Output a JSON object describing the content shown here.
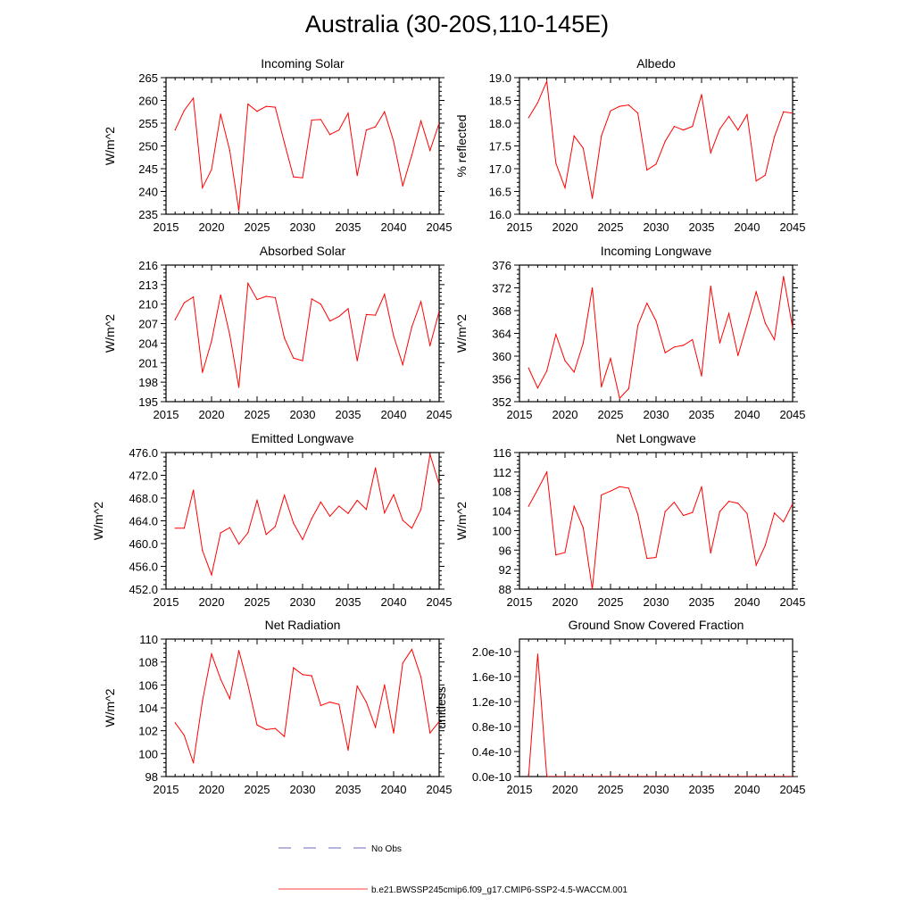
{
  "page": {
    "title": "Australia (30-20S,110-145E)"
  },
  "legend": {
    "obs_label": "No Obs",
    "model_label": "b.e21.BWSSP245cmip6.f09_g17.CMIP6-SSP2-4.5-WACCM.001",
    "obs_color": "#3a3aa8",
    "model_color": "#ff0000"
  },
  "chart_data": [
    {
      "type": "line",
      "title": "Incoming Solar",
      "xlabel": "",
      "ylabel": "W/m^2",
      "xlim": [
        2015,
        2045
      ],
      "ylim": [
        235,
        265
      ],
      "xticks": [
        "2015",
        "2020",
        "2025",
        "2030",
        "2035",
        "2040",
        "2045"
      ],
      "yticks": [
        "235",
        "240",
        "245",
        "250",
        "255",
        "260",
        "265"
      ],
      "x": [
        2016,
        2017,
        2018,
        2019,
        2020,
        2021,
        2022,
        2023,
        2024,
        2025,
        2026,
        2027,
        2028,
        2029,
        2030,
        2031,
        2032,
        2033,
        2034,
        2035,
        2036,
        2037,
        2038,
        2039,
        2040,
        2041,
        2042,
        2043,
        2044,
        2045
      ],
      "series": [
        {
          "values": [
            253.5,
            257.8,
            260.5,
            240.8,
            244.8,
            257.0,
            249.0,
            235.8,
            259.2,
            257.6,
            258.7,
            258.5,
            250.7,
            243.2,
            243.0,
            255.7,
            255.8,
            252.5,
            253.5,
            257.2,
            243.5,
            253.5,
            254.2,
            257.5,
            251.0,
            241.2,
            248.0,
            255.5,
            249.0,
            255.0
          ],
          "color": "#ff0000"
        }
      ]
    },
    {
      "type": "line",
      "title": "Albedo",
      "xlabel": "",
      "ylabel": "% reflected",
      "xlim": [
        2015,
        2045
      ],
      "ylim": [
        16.0,
        19.0
      ],
      "xticks": [
        "2015",
        "2020",
        "2025",
        "2030",
        "2035",
        "2040",
        "2045"
      ],
      "yticks": [
        "16.0",
        "16.5",
        "17.0",
        "17.5",
        "18.0",
        "18.5",
        "19.0"
      ],
      "x": [
        2016,
        2017,
        2018,
        2019,
        2020,
        2021,
        2022,
        2023,
        2024,
        2025,
        2026,
        2027,
        2028,
        2029,
        2030,
        2031,
        2032,
        2033,
        2034,
        2035,
        2036,
        2037,
        2038,
        2039,
        2040,
        2041,
        2042,
        2043,
        2044,
        2045
      ],
      "series": [
        {
          "values": [
            18.12,
            18.45,
            18.92,
            17.12,
            16.58,
            17.72,
            17.45,
            16.35,
            17.72,
            18.27,
            18.37,
            18.4,
            18.22,
            16.97,
            17.1,
            17.6,
            17.93,
            17.85,
            17.93,
            18.63,
            17.35,
            17.87,
            18.15,
            17.85,
            18.19,
            16.73,
            16.86,
            17.7,
            18.25,
            18.22
          ],
          "color": "#ff0000"
        }
      ]
    },
    {
      "type": "line",
      "title": "Absorbed Solar",
      "xlabel": "",
      "ylabel": "W/m^2",
      "xlim": [
        2015,
        2045
      ],
      "ylim": [
        195,
        216
      ],
      "xticks": [
        "2015",
        "2020",
        "2025",
        "2030",
        "2035",
        "2040",
        "2045"
      ],
      "yticks": [
        "195",
        "198",
        "201",
        "204",
        "207",
        "210",
        "213",
        "216"
      ],
      "x": [
        2016,
        2017,
        2018,
        2019,
        2020,
        2021,
        2022,
        2023,
        2024,
        2025,
        2026,
        2027,
        2028,
        2029,
        2030,
        2031,
        2032,
        2033,
        2034,
        2035,
        2036,
        2037,
        2038,
        2039,
        2040,
        2041,
        2042,
        2043,
        2044,
        2045
      ],
      "series": [
        {
          "values": [
            207.6,
            210.2,
            211.1,
            199.5,
            204.3,
            211.4,
            205.3,
            197.2,
            213.2,
            210.7,
            211.2,
            211.0,
            204.8,
            201.7,
            201.3,
            210.8,
            210.0,
            207.4,
            208.1,
            209.3,
            201.3,
            208.4,
            208.3,
            211.5,
            205.1,
            200.7,
            206.5,
            210.4,
            203.6,
            208.9
          ],
          "color": "#ff0000"
        }
      ]
    },
    {
      "type": "line",
      "title": "Incoming Longwave",
      "xlabel": "",
      "ylabel": "W/m^2",
      "xlim": [
        2015,
        2045
      ],
      "ylim": [
        352,
        376
      ],
      "xticks": [
        "2015",
        "2020",
        "2025",
        "2030",
        "2035",
        "2040",
        "2045"
      ],
      "yticks": [
        "352",
        "356",
        "360",
        "364",
        "368",
        "372",
        "376"
      ],
      "x": [
        2016,
        2017,
        2018,
        2019,
        2020,
        2021,
        2022,
        2023,
        2024,
        2025,
        2026,
        2027,
        2028,
        2029,
        2030,
        2031,
        2032,
        2033,
        2034,
        2035,
        2036,
        2037,
        2038,
        2039,
        2040,
        2041,
        2042,
        2043,
        2044,
        2045
      ],
      "series": [
        {
          "values": [
            357.9,
            354.4,
            357.4,
            363.8,
            359.2,
            357.2,
            362.3,
            372.0,
            354.6,
            359.6,
            352.6,
            354.3,
            365.4,
            369.3,
            366.2,
            360.6,
            361.6,
            361.9,
            362.9,
            356.5,
            372.3,
            362.3,
            367.5,
            360.1,
            365.6,
            371.3,
            365.8,
            362.9,
            374.0,
            365.0
          ],
          "color": "#ff0000"
        }
      ]
    },
    {
      "type": "line",
      "title": "Emitted Longwave",
      "xlabel": "",
      "ylabel": "W/m^2",
      "xlim": [
        2015,
        2045
      ],
      "ylim": [
        452.0,
        476.0
      ],
      "xticks": [
        "2015",
        "2020",
        "2025",
        "2030",
        "2035",
        "2040",
        "2045"
      ],
      "yticks": [
        "452.0",
        "456.0",
        "460.0",
        "464.0",
        "468.0",
        "472.0",
        "476.0"
      ],
      "x": [
        2016,
        2017,
        2018,
        2019,
        2020,
        2021,
        2022,
        2023,
        2024,
        2025,
        2026,
        2027,
        2028,
        2029,
        2030,
        2031,
        2032,
        2033,
        2034,
        2035,
        2036,
        2037,
        2038,
        2039,
        2040,
        2041,
        2042,
        2043,
        2044,
        2045
      ],
      "series": [
        {
          "values": [
            462.7,
            462.7,
            469.4,
            458.8,
            454.5,
            461.9,
            462.8,
            459.9,
            461.9,
            467.6,
            461.6,
            463.0,
            468.5,
            463.6,
            460.7,
            464.4,
            467.3,
            464.8,
            466.6,
            465.3,
            467.6,
            466.0,
            473.3,
            465.4,
            468.6,
            464.1,
            462.7,
            466.0,
            475.7,
            470.4
          ],
          "color": "#ff0000"
        }
      ]
    },
    {
      "type": "line",
      "title": "Net Longwave",
      "xlabel": "",
      "ylabel": "W/m^2",
      "xlim": [
        2015,
        2045
      ],
      "ylim": [
        88,
        116
      ],
      "xticks": [
        "2015",
        "2020",
        "2025",
        "2030",
        "2035",
        "2040",
        "2045"
      ],
      "yticks": [
        "88",
        "92",
        "96",
        "100",
        "104",
        "108",
        "112",
        "116"
      ],
      "x": [
        2016,
        2017,
        2018,
        2019,
        2020,
        2021,
        2022,
        2023,
        2024,
        2025,
        2026,
        2027,
        2028,
        2029,
        2030,
        2031,
        2032,
        2033,
        2034,
        2035,
        2036,
        2037,
        2038,
        2039,
        2040,
        2041,
        2042,
        2043,
        2044,
        2045
      ],
      "series": [
        {
          "values": [
            105.0,
            108.4,
            112.0,
            95.0,
            95.5,
            105.0,
            100.6,
            88.0,
            107.3,
            108.1,
            109.0,
            108.7,
            103.3,
            94.3,
            94.5,
            103.9,
            105.8,
            103.1,
            103.7,
            109.0,
            95.4,
            103.9,
            106.0,
            105.6,
            103.5,
            92.9,
            97.0,
            103.6,
            101.8,
            105.5
          ],
          "color": "#ff0000"
        }
      ]
    },
    {
      "type": "line",
      "title": "Net Radiation",
      "xlabel": "",
      "ylabel": "W/m^2",
      "xlim": [
        2015,
        2045
      ],
      "ylim": [
        98,
        110
      ],
      "xticks": [
        "2015",
        "2020",
        "2025",
        "2030",
        "2035",
        "2040",
        "2045"
      ],
      "yticks": [
        "98",
        "100",
        "102",
        "104",
        "106",
        "108",
        "110"
      ],
      "x": [
        2016,
        2017,
        2018,
        2019,
        2020,
        2021,
        2022,
        2023,
        2024,
        2025,
        2026,
        2027,
        2028,
        2029,
        2030,
        2031,
        2032,
        2033,
        2034,
        2035,
        2036,
        2037,
        2038,
        2039,
        2040,
        2041,
        2042,
        2043,
        2044,
        2045
      ],
      "series": [
        {
          "values": [
            102.7,
            101.6,
            99.2,
            104.6,
            108.7,
            106.5,
            104.8,
            109.0,
            106.0,
            102.5,
            102.1,
            102.2,
            101.5,
            107.5,
            106.9,
            106.8,
            104.2,
            104.5,
            104.3,
            100.3,
            105.9,
            104.5,
            102.3,
            106.0,
            101.8,
            107.9,
            109.1,
            106.7,
            101.8,
            102.8
          ],
          "color": "#ff0000"
        }
      ]
    },
    {
      "type": "line",
      "title": "Ground Snow Covered Fraction",
      "xlabel": "",
      "ylabel": "unitless",
      "xlim": [
        2015,
        2045
      ],
      "ylim": [
        0.0,
        2.2e-10
      ],
      "xticks": [
        "2015",
        "2020",
        "2025",
        "2030",
        "2035",
        "2040",
        "2045"
      ],
      "yticks": [
        "0.0e-10",
        "0.4e-10",
        "0.8e-10",
        "1.2e-10",
        "1.6e-10",
        "2.0e-10"
      ],
      "ytick_values": [
        0.0,
        4e-11,
        8e-11,
        1.2e-10,
        1.6e-10,
        2e-10
      ],
      "x": [
        2016,
        2017,
        2018,
        2019,
        2020,
        2021,
        2022,
        2023,
        2024,
        2025,
        2026,
        2027,
        2028,
        2029,
        2030,
        2031,
        2032,
        2033,
        2034,
        2035,
        2036,
        2037,
        2038,
        2039,
        2040,
        2041,
        2042,
        2043,
        2044,
        2045
      ],
      "series": [
        {
          "values": [
            0.0,
            1.96e-10,
            0.0,
            0.0,
            0.0,
            0.0,
            0.0,
            0.0,
            0.0,
            0.0,
            0.0,
            0.0,
            0.0,
            0.0,
            0.0,
            0.0,
            0.0,
            0.0,
            0.0,
            0.0,
            0.0,
            0.0,
            0.0,
            0.0,
            0.0,
            0.0,
            0.0,
            0.0,
            0.0,
            0.0
          ],
          "color": "#ff0000"
        }
      ]
    }
  ]
}
